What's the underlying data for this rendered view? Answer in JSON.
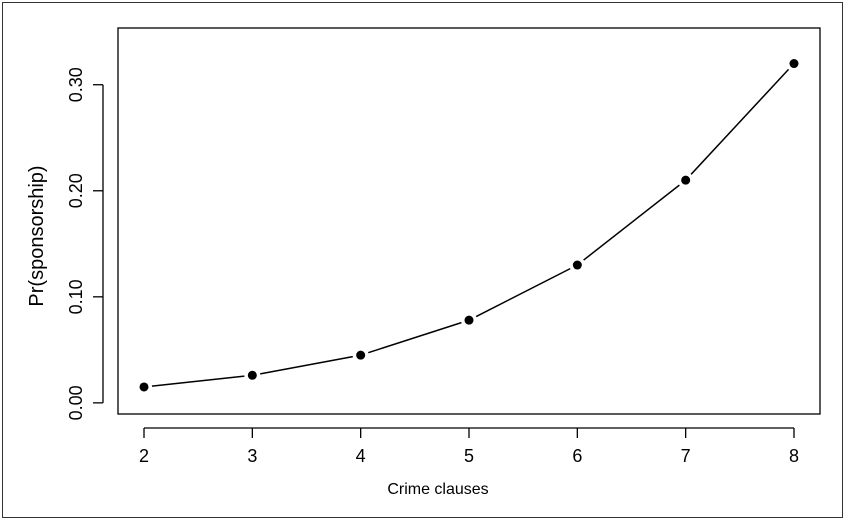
{
  "chart_data": {
    "type": "line",
    "title": "",
    "xlabel": "Crime clauses",
    "ylabel": "Pr(sponsorship)",
    "x": [
      2,
      3,
      4,
      5,
      6,
      7,
      8
    ],
    "series": [
      {
        "values": [
          0.015,
          0.026,
          0.045,
          0.078,
          0.13,
          0.21,
          0.32
        ]
      }
    ],
    "xticks": [
      "2",
      "3",
      "4",
      "5",
      "6",
      "7",
      "8"
    ],
    "yticks": [
      "0.00",
      "0.10",
      "0.20",
      "0.30"
    ],
    "xlim": [
      1.76,
      8.24
    ],
    "ylim": [
      -0.0105,
      0.3535
    ],
    "grid": false,
    "legend": "none",
    "colors": {
      "line": "#000000",
      "point": "#000000",
      "frame": "#333333"
    }
  }
}
